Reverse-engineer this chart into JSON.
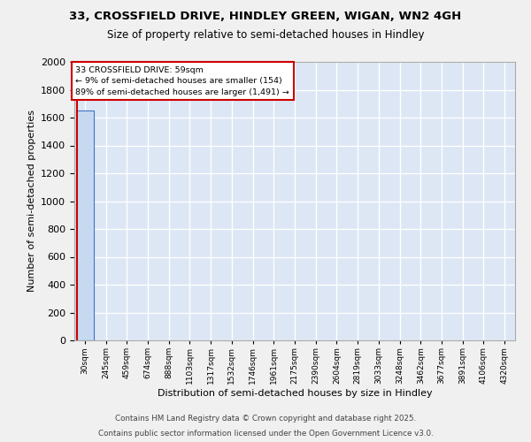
{
  "title_line1": "33, CROSSFIELD DRIVE, HINDLEY GREEN, WIGAN, WN2 4GH",
  "title_line2": "Size of property relative to semi-detached houses in Hindley",
  "xlabel": "Distribution of semi-detached houses by size in Hindley",
  "ylabel": "Number of semi-detached properties",
  "bin_labels": [
    "30sqm",
    "245sqm",
    "459sqm",
    "674sqm",
    "888sqm",
    "1103sqm",
    "1317sqm",
    "1532sqm",
    "1746sqm",
    "1961sqm",
    "2175sqm",
    "2390sqm",
    "2604sqm",
    "2819sqm",
    "3033sqm",
    "3248sqm",
    "3462sqm",
    "3677sqm",
    "3891sqm",
    "4106sqm",
    "4320sqm"
  ],
  "bar_values": [
    1650,
    0,
    0,
    0,
    0,
    0,
    0,
    0,
    0,
    0,
    0,
    0,
    0,
    0,
    0,
    0,
    0,
    0,
    0,
    0,
    0
  ],
  "bar_color": "#c6d9f0",
  "bar_edge_color": "#4472c4",
  "ylim": [
    0,
    2000
  ],
  "yticks": [
    0,
    200,
    400,
    600,
    800,
    1000,
    1200,
    1400,
    1600,
    1800,
    2000
  ],
  "annotation_title": "33 CROSSFIELD DRIVE: 59sqm",
  "annotation_line1": "← 9% of semi-detached houses are smaller (154)",
  "annotation_line2": "89% of semi-detached houses are larger (1,491) →",
  "annotation_box_color": "#ffffff",
  "annotation_border_color": "#cc0000",
  "property_line_color": "#cc0000",
  "background_color": "#dce6f5",
  "grid_color": "#ffffff",
  "fig_background": "#f0f0f0",
  "footer_line1": "Contains HM Land Registry data © Crown copyright and database right 2025.",
  "footer_line2": "Contains public sector information licensed under the Open Government Licence v3.0."
}
